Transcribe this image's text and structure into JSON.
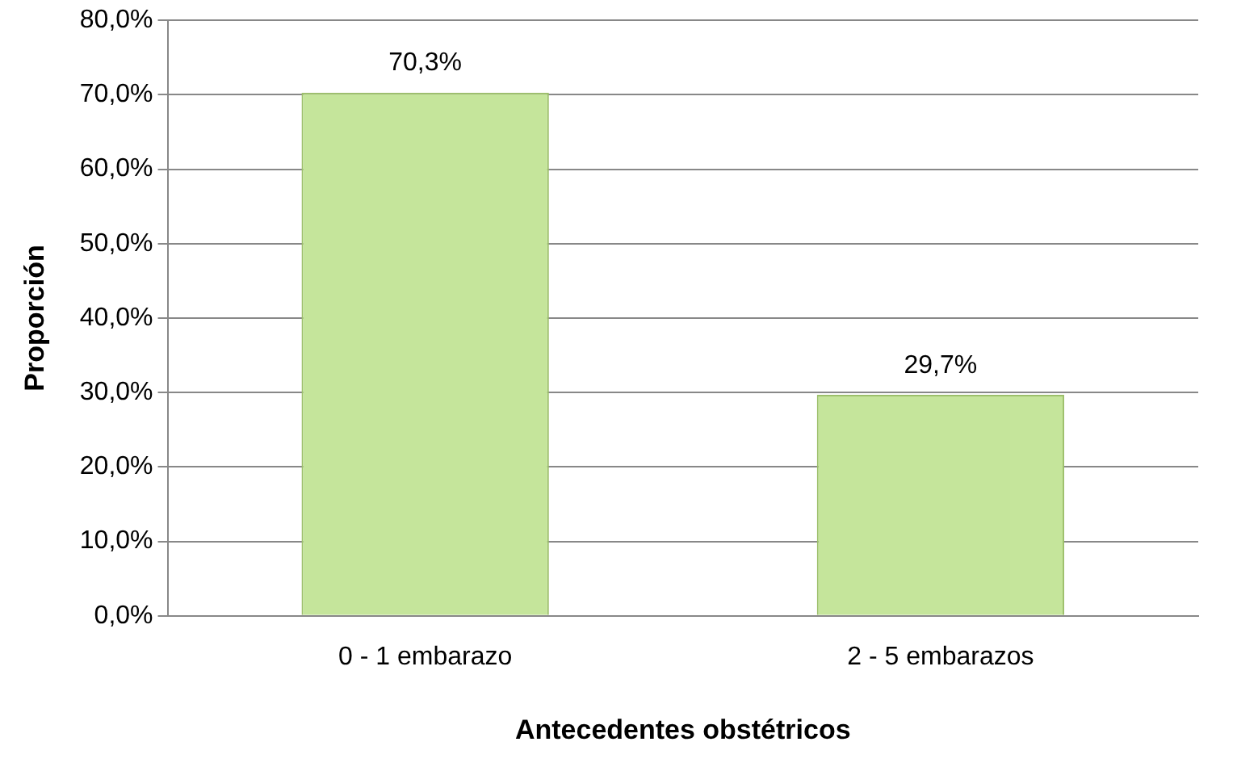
{
  "chart_data": {
    "type": "bar",
    "xlabel": "Antecedentes obstétricos",
    "ylabel": "Proporción",
    "categories": [
      "0 - 1 embarazo",
      "2 - 5 embarazos"
    ],
    "values": [
      70.3,
      29.7
    ],
    "value_labels": [
      "70,3%",
      "29,7%"
    ],
    "color": "#c5e59b",
    "ylim": [
      0,
      80
    ],
    "yticks": [
      {
        "value": 0,
        "label": "0,0%"
      },
      {
        "value": 10,
        "label": "10,0%"
      },
      {
        "value": 20,
        "label": "20,0%"
      },
      {
        "value": 30,
        "label": "30,0%"
      },
      {
        "value": 40,
        "label": "40,0%"
      },
      {
        "value": 50,
        "label": "50,0%"
      },
      {
        "value": 60,
        "label": "60,0%"
      },
      {
        "value": 70,
        "label": "70,0%"
      },
      {
        "value": 80,
        "label": "80,0%"
      }
    ],
    "grid": "y",
    "legend": false
  }
}
